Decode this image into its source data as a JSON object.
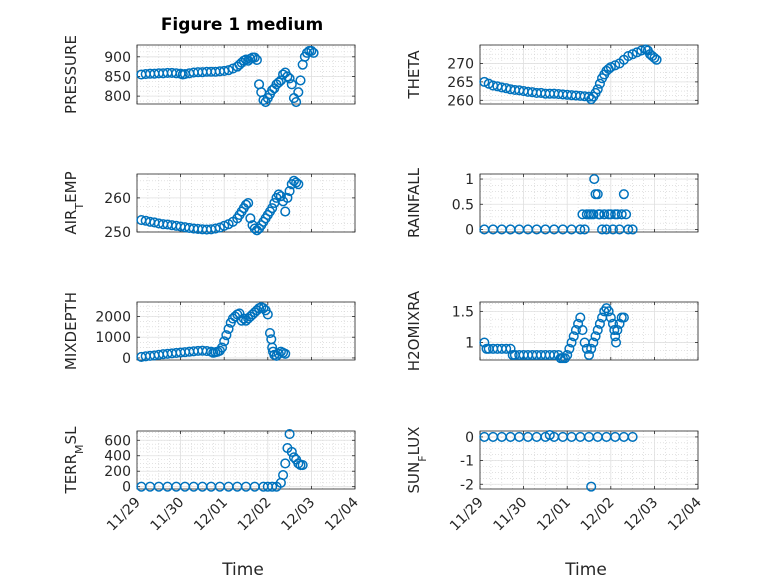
{
  "figure": {
    "title": "Figure 1 medium",
    "x_tick_labels": [
      "11/29",
      "11/30",
      "12/01",
      "12/02",
      "12/03",
      "12/04"
    ],
    "x_label": "Time",
    "marker_color": "#0072BD"
  },
  "chart_data": [
    {
      "type": "scatter",
      "ylabel": "PRESSURE",
      "ylim": [
        780,
        930
      ],
      "yticks": [
        800,
        850,
        900
      ],
      "xlim": [
        0,
        5
      ],
      "grid": true,
      "points": [
        [
          0.1,
          855
        ],
        [
          0.2,
          856
        ],
        [
          0.3,
          857
        ],
        [
          0.4,
          857
        ],
        [
          0.5,
          858
        ],
        [
          0.6,
          858
        ],
        [
          0.7,
          859
        ],
        [
          0.8,
          859
        ],
        [
          0.9,
          858
        ],
        [
          1.0,
          857
        ],
        [
          1.05,
          855
        ],
        [
          1.1,
          856
        ],
        [
          1.2,
          858
        ],
        [
          1.3,
          860
        ],
        [
          1.4,
          861
        ],
        [
          1.5,
          861
        ],
        [
          1.6,
          862
        ],
        [
          1.7,
          862
        ],
        [
          1.8,
          862
        ],
        [
          1.9,
          863
        ],
        [
          2.0,
          864
        ],
        [
          2.1,
          866
        ],
        [
          2.2,
          870
        ],
        [
          2.3,
          875
        ],
        [
          2.35,
          880
        ],
        [
          2.4,
          885
        ],
        [
          2.45,
          890
        ],
        [
          2.5,
          893
        ],
        [
          2.55,
          890
        ],
        [
          2.6,
          895
        ],
        [
          2.65,
          898
        ],
        [
          2.7,
          898
        ],
        [
          2.75,
          892
        ],
        [
          2.8,
          830
        ],
        [
          2.85,
          810
        ],
        [
          2.9,
          790
        ],
        [
          2.95,
          785
        ],
        [
          3.0,
          795
        ],
        [
          3.05,
          805
        ],
        [
          3.1,
          815
        ],
        [
          3.15,
          820
        ],
        [
          3.2,
          830
        ],
        [
          3.25,
          835
        ],
        [
          3.3,
          840
        ],
        [
          3.35,
          855
        ],
        [
          3.4,
          860
        ],
        [
          3.45,
          850
        ],
        [
          3.5,
          845
        ],
        [
          3.55,
          830
        ],
        [
          3.6,
          795
        ],
        [
          3.65,
          785
        ],
        [
          3.7,
          810
        ],
        [
          3.75,
          840
        ],
        [
          3.8,
          880
        ],
        [
          3.85,
          900
        ],
        [
          3.9,
          910
        ],
        [
          3.95,
          915
        ],
        [
          4.0,
          915
        ],
        [
          4.05,
          910
        ]
      ]
    },
    {
      "type": "scatter",
      "ylabel": "THETA",
      "ylim": [
        259,
        275
      ],
      "yticks": [
        260,
        265,
        270
      ],
      "xlim": [
        0,
        5
      ],
      "grid": true,
      "points": [
        [
          0.1,
          265
        ],
        [
          0.2,
          264.5
        ],
        [
          0.3,
          264
        ],
        [
          0.4,
          263.8
        ],
        [
          0.5,
          263.5
        ],
        [
          0.6,
          263.3
        ],
        [
          0.7,
          263
        ],
        [
          0.8,
          262.8
        ],
        [
          0.9,
          262.7
        ],
        [
          1.0,
          262.5
        ],
        [
          1.1,
          262.3
        ],
        [
          1.2,
          262.2
        ],
        [
          1.3,
          262
        ],
        [
          1.4,
          262
        ],
        [
          1.5,
          261.8
        ],
        [
          1.6,
          261.8
        ],
        [
          1.7,
          261.8
        ],
        [
          1.8,
          261.7
        ],
        [
          1.9,
          261.6
        ],
        [
          2.0,
          261.5
        ],
        [
          2.1,
          261.4
        ],
        [
          2.2,
          261.3
        ],
        [
          2.3,
          261.2
        ],
        [
          2.4,
          261.1
        ],
        [
          2.5,
          261
        ],
        [
          2.55,
          260.3
        ],
        [
          2.6,
          261
        ],
        [
          2.65,
          262
        ],
        [
          2.7,
          263
        ],
        [
          2.75,
          264.5
        ],
        [
          2.8,
          266
        ],
        [
          2.85,
          267
        ],
        [
          2.9,
          268
        ],
        [
          2.95,
          268.5
        ],
        [
          3.0,
          269
        ],
        [
          3.1,
          269.5
        ],
        [
          3.2,
          270
        ],
        [
          3.3,
          271
        ],
        [
          3.4,
          272
        ],
        [
          3.5,
          272.5
        ],
        [
          3.6,
          273
        ],
        [
          3.7,
          273.5
        ],
        [
          3.8,
          273.8
        ],
        [
          3.85,
          273.5
        ],
        [
          3.9,
          272.5
        ],
        [
          3.95,
          272
        ],
        [
          4.0,
          271.5
        ],
        [
          4.05,
          271
        ]
      ]
    },
    {
      "type": "scatter",
      "ylabel": "AIR_TEMP",
      "ylim": [
        250,
        267
      ],
      "yticks": [
        250,
        260
      ],
      "xlim": [
        0,
        5
      ],
      "grid": true,
      "points": [
        [
          0.1,
          253.5
        ],
        [
          0.2,
          253.3
        ],
        [
          0.3,
          253
        ],
        [
          0.4,
          252.8
        ],
        [
          0.5,
          252.5
        ],
        [
          0.6,
          252.3
        ],
        [
          0.7,
          252.2
        ],
        [
          0.8,
          252
        ],
        [
          0.9,
          251.8
        ],
        [
          1.0,
          251.6
        ],
        [
          1.1,
          251.4
        ],
        [
          1.2,
          251.2
        ],
        [
          1.3,
          251
        ],
        [
          1.4,
          250.9
        ],
        [
          1.5,
          250.8
        ],
        [
          1.6,
          250.7
        ],
        [
          1.7,
          250.8
        ],
        [
          1.8,
          251
        ],
        [
          1.9,
          251.3
        ],
        [
          2.0,
          251.8
        ],
        [
          2.1,
          252.3
        ],
        [
          2.2,
          253
        ],
        [
          2.3,
          254
        ],
        [
          2.35,
          255
        ],
        [
          2.4,
          256
        ],
        [
          2.45,
          257
        ],
        [
          2.5,
          258
        ],
        [
          2.55,
          258.5
        ],
        [
          2.6,
          254
        ],
        [
          2.65,
          252
        ],
        [
          2.7,
          251
        ],
        [
          2.75,
          250.5
        ],
        [
          2.8,
          251
        ],
        [
          2.85,
          252
        ],
        [
          2.9,
          253
        ],
        [
          2.95,
          254
        ],
        [
          3.0,
          255
        ],
        [
          3.05,
          256
        ],
        [
          3.1,
          257
        ],
        [
          3.15,
          258.5
        ],
        [
          3.2,
          260
        ],
        [
          3.25,
          261
        ],
        [
          3.3,
          260.5
        ],
        [
          3.35,
          259
        ],
        [
          3.4,
          256
        ],
        [
          3.45,
          260
        ],
        [
          3.5,
          262
        ],
        [
          3.55,
          264
        ],
        [
          3.6,
          265
        ],
        [
          3.65,
          264.5
        ],
        [
          3.7,
          264
        ]
      ]
    },
    {
      "type": "scatter",
      "ylabel": "RAINFALL",
      "ylim": [
        -0.05,
        1.1
      ],
      "yticks": [
        0,
        0.5,
        1
      ],
      "xlim": [
        0,
        5
      ],
      "grid": true,
      "points": [
        [
          0.1,
          0
        ],
        [
          0.3,
          0
        ],
        [
          0.5,
          0
        ],
        [
          0.7,
          0
        ],
        [
          0.9,
          0
        ],
        [
          1.1,
          0
        ],
        [
          1.3,
          0
        ],
        [
          1.5,
          0
        ],
        [
          1.7,
          0
        ],
        [
          1.9,
          0
        ],
        [
          2.1,
          0
        ],
        [
          2.3,
          0
        ],
        [
          2.35,
          0.3
        ],
        [
          2.4,
          0
        ],
        [
          2.45,
          0.3
        ],
        [
          2.5,
          0.3
        ],
        [
          2.55,
          0.3
        ],
        [
          2.6,
          0.3
        ],
        [
          2.62,
          1
        ],
        [
          2.65,
          0.7
        ],
        [
          2.7,
          0.7
        ],
        [
          2.72,
          0.3
        ],
        [
          2.75,
          0.3
        ],
        [
          2.8,
          0
        ],
        [
          2.85,
          0.3
        ],
        [
          2.9,
          0
        ],
        [
          2.95,
          0.3
        ],
        [
          3.0,
          0.3
        ],
        [
          3.05,
          0
        ],
        [
          3.1,
          0.3
        ],
        [
          3.15,
          0.3
        ],
        [
          3.2,
          0
        ],
        [
          3.25,
          0.3
        ],
        [
          3.3,
          0.7
        ],
        [
          3.35,
          0.3
        ],
        [
          3.4,
          0
        ],
        [
          3.5,
          0
        ]
      ]
    },
    {
      "type": "scatter",
      "ylabel": "MIXDEPTH",
      "ylim": [
        -100,
        2700
      ],
      "yticks": [
        0,
        1000,
        2000
      ],
      "xlim": [
        0,
        5
      ],
      "grid": true,
      "points": [
        [
          0.1,
          50
        ],
        [
          0.2,
          80
        ],
        [
          0.3,
          100
        ],
        [
          0.4,
          120
        ],
        [
          0.5,
          150
        ],
        [
          0.6,
          180
        ],
        [
          0.7,
          200
        ],
        [
          0.8,
          220
        ],
        [
          0.9,
          240
        ],
        [
          1.0,
          260
        ],
        [
          1.1,
          280
        ],
        [
          1.2,
          300
        ],
        [
          1.3,
          320
        ],
        [
          1.4,
          340
        ],
        [
          1.5,
          350
        ],
        [
          1.6,
          330
        ],
        [
          1.7,
          300
        ],
        [
          1.75,
          250
        ],
        [
          1.8,
          280
        ],
        [
          1.85,
          300
        ],
        [
          1.9,
          350
        ],
        [
          1.95,
          500
        ],
        [
          2.0,
          800
        ],
        [
          2.05,
          1100
        ],
        [
          2.1,
          1400
        ],
        [
          2.15,
          1700
        ],
        [
          2.2,
          1900
        ],
        [
          2.25,
          2000
        ],
        [
          2.3,
          2100
        ],
        [
          2.35,
          2150
        ],
        [
          2.4,
          1800
        ],
        [
          2.45,
          1900
        ],
        [
          2.5,
          1800
        ],
        [
          2.55,
          1900
        ],
        [
          2.6,
          2000
        ],
        [
          2.65,
          2100
        ],
        [
          2.7,
          2200
        ],
        [
          2.75,
          2300
        ],
        [
          2.8,
          2400
        ],
        [
          2.85,
          2450
        ],
        [
          2.9,
          2400
        ],
        [
          2.95,
          2300
        ],
        [
          3.0,
          2100
        ],
        [
          3.05,
          1200
        ],
        [
          3.08,
          900
        ],
        [
          3.1,
          500
        ],
        [
          3.12,
          300
        ],
        [
          3.15,
          150
        ],
        [
          3.2,
          100
        ],
        [
          3.25,
          200
        ],
        [
          3.3,
          300
        ],
        [
          3.35,
          250
        ],
        [
          3.4,
          200
        ]
      ]
    },
    {
      "type": "scatter",
      "ylabel": "H2OMIXRA",
      "ylim": [
        0.72,
        1.65
      ],
      "yticks": [
        1,
        1.5
      ],
      "xlim": [
        0,
        5
      ],
      "grid": true,
      "points": [
        [
          0.1,
          1.0
        ],
        [
          0.15,
          0.9
        ],
        [
          0.2,
          0.9
        ],
        [
          0.3,
          0.9
        ],
        [
          0.4,
          0.9
        ],
        [
          0.5,
          0.9
        ],
        [
          0.6,
          0.9
        ],
        [
          0.7,
          0.9
        ],
        [
          0.75,
          0.8
        ],
        [
          0.8,
          0.8
        ],
        [
          0.9,
          0.8
        ],
        [
          1.0,
          0.8
        ],
        [
          1.1,
          0.8
        ],
        [
          1.2,
          0.8
        ],
        [
          1.3,
          0.8
        ],
        [
          1.4,
          0.8
        ],
        [
          1.5,
          0.8
        ],
        [
          1.6,
          0.8
        ],
        [
          1.7,
          0.8
        ],
        [
          1.8,
          0.8
        ],
        [
          1.85,
          0.75
        ],
        [
          1.9,
          0.75
        ],
        [
          1.95,
          0.75
        ],
        [
          2.0,
          0.8
        ],
        [
          2.05,
          0.9
        ],
        [
          2.1,
          1.0
        ],
        [
          2.15,
          1.1
        ],
        [
          2.2,
          1.2
        ],
        [
          2.25,
          1.3
        ],
        [
          2.3,
          1.4
        ],
        [
          2.35,
          1.2
        ],
        [
          2.4,
          1.0
        ],
        [
          2.45,
          0.9
        ],
        [
          2.5,
          0.8
        ],
        [
          2.55,
          0.9
        ],
        [
          2.6,
          1.0
        ],
        [
          2.65,
          1.1
        ],
        [
          2.7,
          1.2
        ],
        [
          2.75,
          1.3
        ],
        [
          2.8,
          1.4
        ],
        [
          2.85,
          1.5
        ],
        [
          2.9,
          1.55
        ],
        [
          2.95,
          1.5
        ],
        [
          3.0,
          1.4
        ],
        [
          3.05,
          1.3
        ],
        [
          3.08,
          1.2
        ],
        [
          3.1,
          1.1
        ],
        [
          3.12,
          1.0
        ],
        [
          3.15,
          1.2
        ],
        [
          3.2,
          1.3
        ],
        [
          3.25,
          1.4
        ],
        [
          3.3,
          1.4
        ]
      ]
    },
    {
      "type": "scatter",
      "ylabel": "TERR_MSL",
      "ylim": [
        -30,
        720
      ],
      "yticks": [
        0,
        200,
        400,
        600
      ],
      "xlim": [
        0,
        5
      ],
      "grid": true,
      "points": [
        [
          0.1,
          0
        ],
        [
          0.3,
          0
        ],
        [
          0.5,
          0
        ],
        [
          0.7,
          0
        ],
        [
          0.9,
          0
        ],
        [
          1.1,
          0
        ],
        [
          1.3,
          0
        ],
        [
          1.5,
          0
        ],
        [
          1.7,
          0
        ],
        [
          1.9,
          0
        ],
        [
          2.1,
          0
        ],
        [
          2.3,
          0
        ],
        [
          2.5,
          0
        ],
        [
          2.7,
          0
        ],
        [
          2.9,
          0
        ],
        [
          3.0,
          0
        ],
        [
          3.1,
          0
        ],
        [
          3.2,
          0
        ],
        [
          3.3,
          50
        ],
        [
          3.35,
          150
        ],
        [
          3.4,
          300
        ],
        [
          3.45,
          500
        ],
        [
          3.5,
          680
        ],
        [
          3.55,
          450
        ],
        [
          3.6,
          380
        ],
        [
          3.65,
          350
        ],
        [
          3.7,
          300
        ],
        [
          3.75,
          280
        ],
        [
          3.8,
          280
        ]
      ]
    },
    {
      "type": "scatter",
      "ylabel": "SUN_FLUX",
      "ylim": [
        -2.2,
        0.25
      ],
      "yticks": [
        -2,
        -1,
        0
      ],
      "xlim": [
        0,
        5
      ],
      "grid": true,
      "points": [
        [
          0.1,
          0
        ],
        [
          0.3,
          0
        ],
        [
          0.5,
          0
        ],
        [
          0.7,
          0
        ],
        [
          0.9,
          0
        ],
        [
          1.1,
          0
        ],
        [
          1.3,
          0
        ],
        [
          1.5,
          0
        ],
        [
          1.6,
          0.08
        ],
        [
          1.7,
          0
        ],
        [
          1.9,
          0
        ],
        [
          2.1,
          0
        ],
        [
          2.3,
          0
        ],
        [
          2.5,
          0
        ],
        [
          2.55,
          -2.1
        ],
        [
          2.7,
          0
        ],
        [
          2.9,
          0
        ],
        [
          3.1,
          0
        ],
        [
          3.3,
          0
        ],
        [
          3.5,
          0
        ]
      ]
    }
  ]
}
